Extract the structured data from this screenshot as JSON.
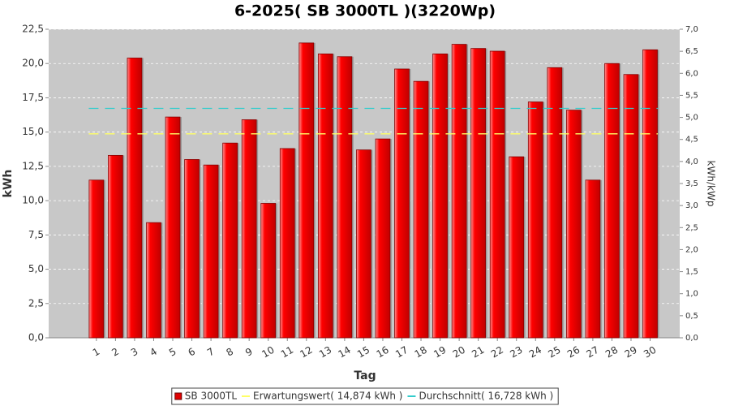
{
  "chart_data": {
    "type": "bar",
    "title": "6-2025( SB 3000TL )(3220Wp)",
    "x_label": "Tag",
    "y_label": "kWh",
    "y2_label": "kWh/kWp",
    "categories": [
      "1",
      "2",
      "3",
      "4",
      "5",
      "6",
      "7",
      "8",
      "9",
      "10",
      "11",
      "12",
      "13",
      "14",
      "15",
      "16",
      "17",
      "18",
      "19",
      "20",
      "21",
      "22",
      "23",
      "24",
      "25",
      "26",
      "27",
      "28",
      "29",
      "30"
    ],
    "series": [
      {
        "name": "SB 3000TL",
        "color": "#e00000",
        "values": [
          11.5,
          13.3,
          20.4,
          8.4,
          16.1,
          13.0,
          12.6,
          14.2,
          15.9,
          9.8,
          13.8,
          21.5,
          20.7,
          20.5,
          13.7,
          14.5,
          19.6,
          18.7,
          20.7,
          21.4,
          21.1,
          20.9,
          13.2,
          17.2,
          19.7,
          16.6,
          11.5,
          20.0,
          19.2,
          21.0
        ]
      }
    ],
    "reference_lines": [
      {
        "name": "Erwartungswert( 14,874 kWh )",
        "color": "#ffff66",
        "value": 14.874
      },
      {
        "name": "Durchschnitt( 16,728 kWh )",
        "color": "#33cccc",
        "value": 16.728
      }
    ],
    "ylim": [
      0,
      22.5
    ],
    "yticks": [
      {
        "value": 0,
        "label": "0,0"
      },
      {
        "value": 2.5,
        "label": "2,5"
      },
      {
        "value": 5,
        "label": "5,0"
      },
      {
        "value": 7.5,
        "label": "7,5"
      },
      {
        "value": 10,
        "label": "10,0"
      },
      {
        "value": 12.5,
        "label": "12,5"
      },
      {
        "value": 15,
        "label": "15,0"
      },
      {
        "value": 17.5,
        "label": "17,5"
      },
      {
        "value": 20,
        "label": "20,0"
      },
      {
        "value": 22.5,
        "label": "22,5"
      }
    ],
    "y2lim": [
      0,
      7
    ],
    "y2ticks": [
      {
        "value": 0,
        "label": "0,0"
      },
      {
        "value": 0.5,
        "label": "0,5"
      },
      {
        "value": 1,
        "label": "1,0"
      },
      {
        "value": 1.5,
        "label": "1,5"
      },
      {
        "value": 2,
        "label": "2,0"
      },
      {
        "value": 2.5,
        "label": "2,5"
      },
      {
        "value": 3,
        "label": "3,0"
      },
      {
        "value": 3.5,
        "label": "3,5"
      },
      {
        "value": 4,
        "label": "4,0"
      },
      {
        "value": 4.5,
        "label": "4,5"
      },
      {
        "value": 5,
        "label": "5,0"
      },
      {
        "value": 5.5,
        "label": "5,5"
      },
      {
        "value": 6,
        "label": "6,0"
      },
      {
        "value": 6.5,
        "label": "6,5"
      },
      {
        "value": 7,
        "label": "7,0"
      }
    ],
    "grid": true
  }
}
